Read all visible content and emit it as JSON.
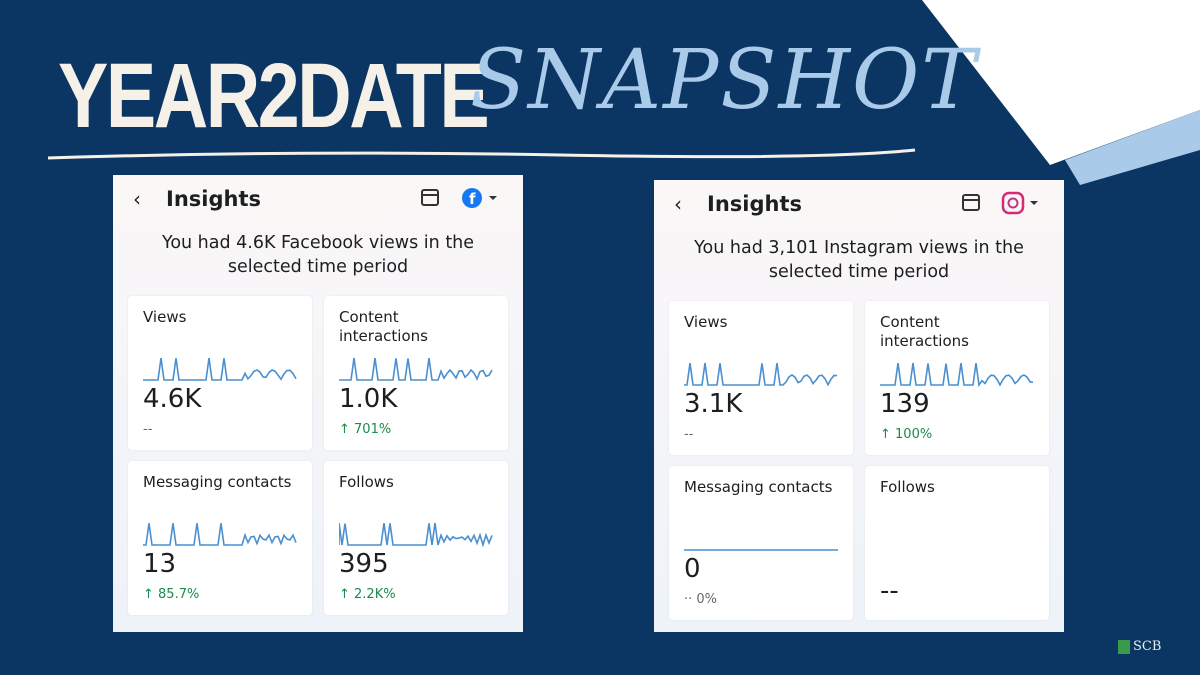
{
  "header": {
    "title": "YEAR2DATE",
    "title_script": "SNAPSHOT"
  },
  "panels": [
    {
      "platform": "facebook",
      "title": "Insights",
      "summary": "You had 4.6K Facebook views in the selected time period",
      "cards": [
        {
          "label": "Views",
          "value": "4.6K",
          "change": "--"
        },
        {
          "label": "Content interactions",
          "value": "1.0K",
          "change": "↑ 701%"
        },
        {
          "label": "Messaging contacts",
          "value": "13",
          "change": "↑ 85.7%"
        },
        {
          "label": "Follows",
          "value": "395",
          "change": "↑ 2.2K%"
        }
      ]
    },
    {
      "platform": "instagram",
      "title": "Insights",
      "summary": "You had 3,101 Instagram views in the selected time period",
      "cards": [
        {
          "label": "Views",
          "value": "3.1K",
          "change": "--"
        },
        {
          "label": "Content interactions",
          "value": "139",
          "change": "↑ 100%"
        },
        {
          "label": "Messaging contacts",
          "value": "0",
          "change": "·· 0%"
        },
        {
          "label": "Follows",
          "value": "--"
        }
      ]
    }
  ],
  "logo": "SCB"
}
